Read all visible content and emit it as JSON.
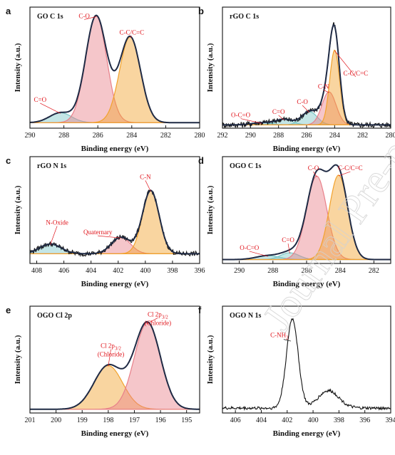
{
  "watermark": "Journal Pre-proof",
  "colors": {
    "envelope": "#1f2a44",
    "raw": "#111111",
    "component_red": "#e8808a",
    "component_orange": "#f2a22c",
    "component_teal": "#7cc7c7",
    "label_red": "#e0151c"
  },
  "chart_data": [
    {
      "panel": "a",
      "title": "GO C 1s",
      "type": "line",
      "xlabel": "Binding energy (eV)",
      "ylabel": "Intensity (a.u.)",
      "xlim": [
        290,
        280
      ],
      "xticks": [
        290,
        288,
        286,
        284,
        282,
        280
      ],
      "ylim": [
        0,
        1.1
      ],
      "baseline": 0.05,
      "show_raw": false,
      "peaks": [
        {
          "center": 288.2,
          "height": 0.09,
          "width": 0.65,
          "color": "#7cc7c7",
          "label": "C=O",
          "label_x": 289.4,
          "label_y": 0.24
        },
        {
          "center": 286.1,
          "height": 0.97,
          "width": 0.62,
          "color": "#e8808a",
          "label": "C-O",
          "label_x": 286.8,
          "label_y": 1.0
        },
        {
          "center": 284.1,
          "height": 0.78,
          "width": 0.62,
          "color": "#f2a22c",
          "label": "C-C/C=C",
          "label_x": 284.0,
          "label_y": 0.85
        }
      ]
    },
    {
      "panel": "b",
      "title": "rGO C 1s",
      "type": "line",
      "xlabel": "Binding energy (eV)",
      "ylabel": "Intensity (a.u.)",
      "xlim": [
        292,
        280
      ],
      "xticks": [
        292,
        290,
        288,
        286,
        284,
        282,
        280
      ],
      "ylim": [
        0,
        1.1
      ],
      "baseline": 0.03,
      "show_raw": true,
      "peaks": [
        {
          "center": 289.2,
          "height": 0.02,
          "width": 0.7,
          "color": "#7cc7c7",
          "label": "O-C=O",
          "label_x": 290.7,
          "label_y": 0.1
        },
        {
          "center": 287.6,
          "height": 0.05,
          "width": 0.6,
          "color": "#7cc7c7",
          "label": "C=O",
          "label_x": 288.0,
          "label_y": 0.13
        },
        {
          "center": 285.8,
          "height": 0.12,
          "width": 0.55,
          "color": "#7cc7c7",
          "label": "C-O",
          "label_x": 286.3,
          "label_y": 0.22
        },
        {
          "center": 284.4,
          "height": 0.3,
          "width": 0.5,
          "color": "#e8808a",
          "label": "C-N",
          "label_x": 284.8,
          "label_y": 0.36
        },
        {
          "center": 284.0,
          "height": 0.68,
          "width": 0.35,
          "color": "#f2a22c",
          "label": "C-C/C=C",
          "label_x": 282.5,
          "label_y": 0.48
        }
      ]
    },
    {
      "panel": "c",
      "title": "rGO N 1s",
      "type": "line",
      "xlabel": "Binding energy (eV)",
      "ylabel": "Intensity (a.u.)",
      "xlim": [
        408.5,
        396
      ],
      "xticks": [
        408,
        406,
        404,
        402,
        400,
        398,
        396
      ],
      "ylim": [
        0,
        1.1
      ],
      "baseline": 0.1,
      "show_raw": true,
      "peaks": [
        {
          "center": 407.0,
          "height": 0.1,
          "width": 0.8,
          "color": "#7cc7c7",
          "label": "N-Oxide",
          "label_x": 406.5,
          "label_y": 0.4
        },
        {
          "center": 401.8,
          "height": 0.17,
          "width": 0.7,
          "color": "#e8808a",
          "label": "Quaternary",
          "label_x": 403.5,
          "label_y": 0.3
        },
        {
          "center": 399.6,
          "height": 0.65,
          "width": 0.62,
          "color": "#f2a22c",
          "label": "C-N",
          "label_x": 400.0,
          "label_y": 0.87
        }
      ]
    },
    {
      "panel": "d",
      "title": "OGO C 1s",
      "type": "line",
      "xlabel": "Binding energy (eV)",
      "ylabel": "Intensity (a.u.)",
      "xlim": [
        291,
        281
      ],
      "xticks": [
        290,
        288,
        286,
        284,
        282
      ],
      "ylim": [
        0,
        1.1
      ],
      "baseline": 0.04,
      "show_raw": false,
      "peaks": [
        {
          "center": 288.3,
          "height": 0.04,
          "width": 0.7,
          "color": "#7cc7c7",
          "label": "O-C=O",
          "label_x": 289.4,
          "label_y": 0.14
        },
        {
          "center": 287.0,
          "height": 0.07,
          "width": 0.55,
          "color": "#7cc7c7",
          "label": "C=O",
          "label_x": 287.1,
          "label_y": 0.22
        },
        {
          "center": 285.4,
          "height": 0.86,
          "width": 0.6,
          "color": "#e8808a",
          "label": "C-O",
          "label_x": 285.6,
          "label_y": 0.96
        },
        {
          "center": 284.1,
          "height": 0.87,
          "width": 0.55,
          "color": "#f2a22c",
          "label": "C-C/C=C",
          "label_x": 283.4,
          "label_y": 0.96
        }
      ]
    },
    {
      "panel": "e",
      "title": "OGO Cl 2p",
      "type": "line",
      "xlabel": "Binding energy (eV)",
      "ylabel": "Intensity (a.u.)",
      "xlim": [
        201,
        194.5
      ],
      "xticks": [
        201,
        200,
        199,
        198,
        197,
        196,
        195
      ],
      "ylim": [
        0,
        1.15
      ],
      "baseline": 0.04,
      "show_raw": false,
      "peaks": [
        {
          "center": 198.0,
          "height": 0.47,
          "width": 0.55,
          "color": "#f2a22c",
          "label": "Cl 2p3/2",
          "label_x": 197.9,
          "label_y": 0.7,
          "sublabel": "(Chloride)"
        },
        {
          "center": 196.5,
          "height": 0.93,
          "width": 0.5,
          "color": "#e8808a",
          "label": "Cl 2p3/2",
          "label_x": 196.1,
          "label_y": 1.04,
          "sublabel": "(Chloride)"
        }
      ]
    },
    {
      "panel": "f",
      "title": "OGO N 1s",
      "type": "line",
      "xlabel": "Binding energy (eV)",
      "ylabel": "Intensity (a.u.)",
      "xlim": [
        407,
        394
      ],
      "xticks": [
        406,
        404,
        402,
        400,
        398,
        396,
        394
      ],
      "ylim": [
        0,
        1.1
      ],
      "baseline": 0.05,
      "show_raw": true,
      "raw_only": true,
      "peaks": [
        {
          "center": 401.6,
          "height": 0.92,
          "width": 0.45,
          "color": "none",
          "label": "C-NH2",
          "label_x": 402.6,
          "label_y": 0.78
        },
        {
          "center": 398.8,
          "height": 0.18,
          "width": 0.8,
          "color": "none"
        }
      ]
    }
  ]
}
